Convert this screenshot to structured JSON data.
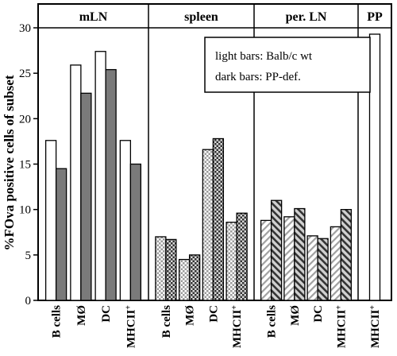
{
  "chart_data": {
    "type": "bar",
    "ylabel": "%FOva positive cells of subset",
    "ylim": [
      0,
      30
    ],
    "yticks": [
      0,
      5,
      10,
      15,
      20,
      25,
      30
    ],
    "groups": [
      {
        "title": "mLN",
        "categories": [
          "B cells",
          "MØ",
          "DC",
          "MHCII+"
        ],
        "values_light": [
          17.6,
          25.9,
          27.4,
          17.6
        ],
        "values_dark": [
          14.5,
          22.8,
          25.4,
          15.0
        ],
        "pattern": "solid"
      },
      {
        "title": "spleen",
        "categories": [
          "B cells",
          "MØ",
          "DC",
          "MHCII+"
        ],
        "values_light": [
          7.0,
          4.5,
          16.6,
          8.6
        ],
        "values_dark": [
          6.7,
          5.0,
          17.8,
          9.6
        ],
        "pattern": "checker"
      },
      {
        "title": "per. LN",
        "categories": [
          "B cells",
          "MØ",
          "DC",
          "MHCII+"
        ],
        "values_light": [
          8.8,
          9.2,
          7.1,
          8.1
        ],
        "values_dark": [
          11.0,
          10.1,
          6.8,
          10.0
        ],
        "pattern": "diagonal"
      },
      {
        "title": "PP",
        "categories": [
          "MHCII+"
        ],
        "values_light": [
          29.3
        ],
        "values_dark": [],
        "pattern": "none"
      }
    ],
    "legend": {
      "lines": [
        "light bars: Balb/c wt",
        "dark bars: PP-def."
      ],
      "placement": "top-right"
    },
    "grid": false
  },
  "colors": {
    "axis": "#000000",
    "light_fill": "#ffffff",
    "dark_fill": "#7a7a7a",
    "pattern_ink": "#444444",
    "pattern_light_ink": "#9a9a9a"
  }
}
